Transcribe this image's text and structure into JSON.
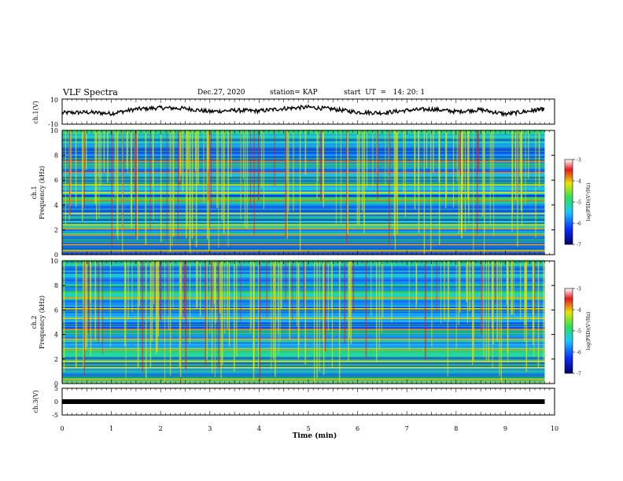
{
  "header": {
    "title": "VLF Spectra",
    "date": "Dec.27, 2020",
    "station": "station= KAP",
    "start": "start  UT  =   14: 20: 1"
  },
  "chart_data": [
    {
      "type": "line",
      "name": "ch1-waveform",
      "ylabel": "ch.1(V)",
      "ylim": [
        -10,
        10
      ],
      "yticks": [
        "10",
        "-10"
      ],
      "xlim": [
        0,
        10
      ],
      "x": [
        0,
        0.5,
        1,
        1.5,
        2,
        2.5,
        3,
        3.5,
        4,
        4.5,
        5,
        5.5,
        6,
        6.5,
        7,
        7.5,
        8,
        8.5,
        9,
        9.5,
        9.8
      ],
      "y": [
        -1,
        -0.5,
        -1.5,
        2,
        3,
        2.5,
        0,
        1,
        0.5,
        2.5,
        3.5,
        2,
        -0.5,
        -1,
        1,
        2,
        0,
        1.5,
        -2,
        0.5,
        2
      ]
    },
    {
      "type": "heatmap",
      "name": "ch1-spectrogram",
      "xlabel": "",
      "ylabel_top": "ch.1",
      "ylabel": "Frequency  (kHz)",
      "ylim": [
        0,
        10
      ],
      "yticks": [
        "0",
        "2",
        "4",
        "6",
        "8",
        "10"
      ],
      "xlim": [
        0,
        10
      ],
      "colorbar": {
        "label": "log(PSD)(V²/Hz)",
        "ticks": [
          "-3",
          "-4",
          "-5",
          "-6",
          "-7"
        ],
        "range": [
          -7,
          -3
        ]
      },
      "bands_khz": [
        0.3,
        0.8,
        1.6,
        2.1,
        2.4,
        3.3,
        4.4,
        5.0,
        5.6,
        6.6,
        7.5
      ]
    },
    {
      "type": "heatmap",
      "name": "ch2-spectrogram",
      "xlabel": "",
      "ylabel_top": "ch.2",
      "ylabel": "Frequency  (kHz)",
      "ylim": [
        0,
        10
      ],
      "yticks": [
        "0",
        "2",
        "4",
        "6",
        "8",
        "10"
      ],
      "xlim": [
        0,
        10
      ],
      "colorbar": {
        "label": "log(PSD)(V²/Hz)",
        "ticks": [
          "-3",
          "-4",
          "-5",
          "-6",
          "-7"
        ],
        "range": [
          -7,
          -3
        ]
      },
      "bands_khz": [
        0.3,
        1.3,
        1.8,
        2.8,
        3.6,
        4.4,
        5.3,
        6.1,
        7.0
      ]
    },
    {
      "type": "line",
      "name": "ch3-waveform",
      "ylabel": "ch.3(V)",
      "ylim": [
        -5,
        5
      ],
      "yticks": [
        "5",
        "0",
        "-5"
      ],
      "xlim": [
        0,
        10
      ],
      "x": [
        0,
        9.8
      ],
      "y": [
        0,
        0
      ]
    }
  ],
  "xaxis": {
    "label": "Time  (min)",
    "ticks": [
      "0",
      "1",
      "2",
      "3",
      "4",
      "5",
      "6",
      "7",
      "8",
      "9",
      "10"
    ]
  },
  "colors": {
    "blue": "#0a2cff",
    "cyan": "#19c8ff",
    "green": "#2ee05a",
    "yellow": "#e8e400",
    "red": "#e8181e"
  }
}
